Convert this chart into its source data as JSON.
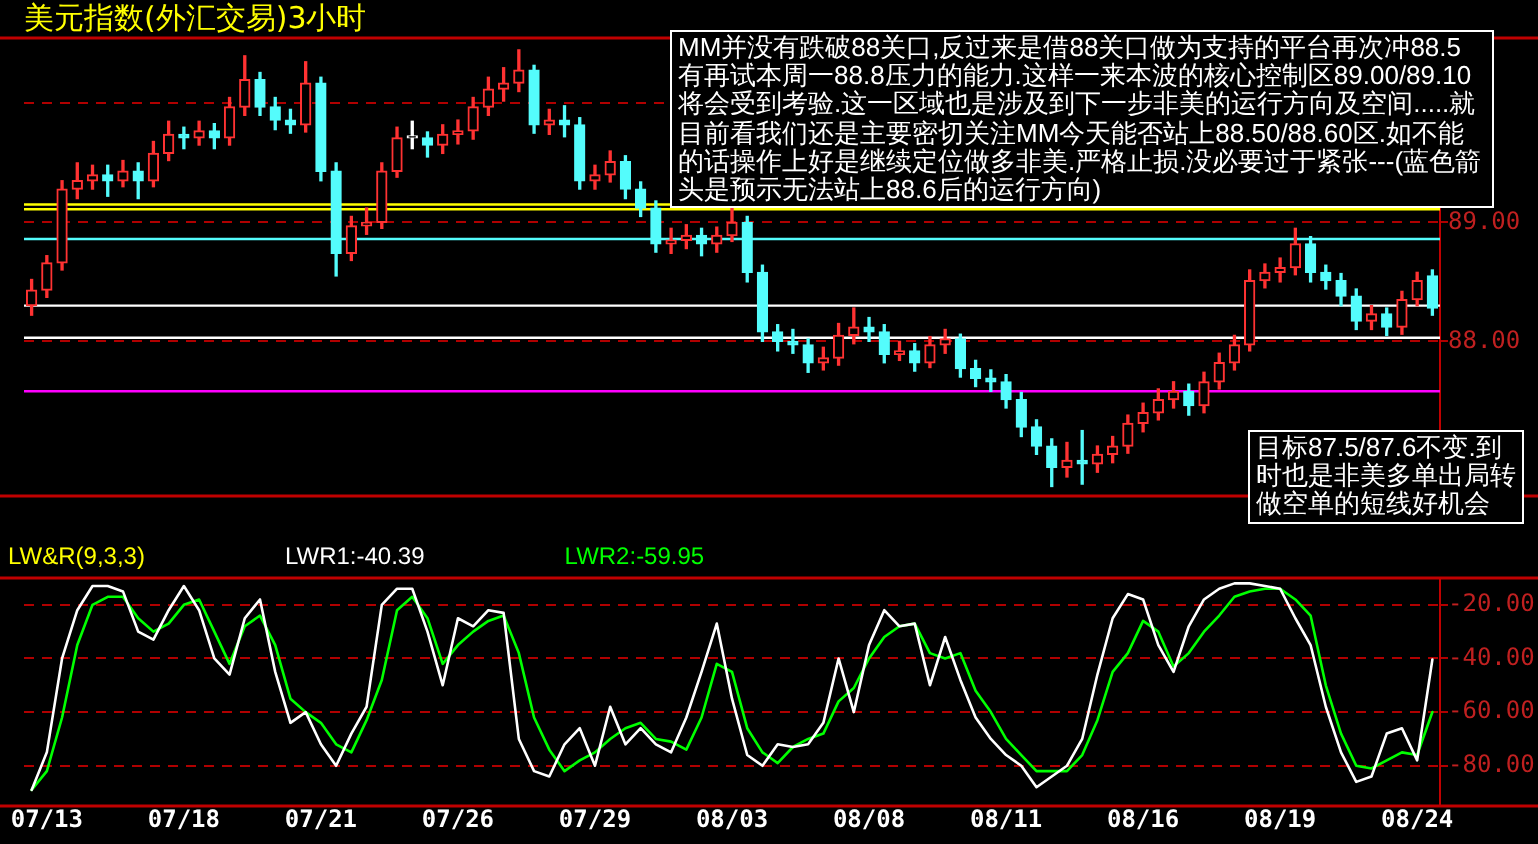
{
  "chart_data": [
    {
      "type": "candlestick",
      "title": "美元指数(外汇交易)3小时",
      "categories": [
        null,
        null,
        null,
        null,
        null,
        null,
        null,
        null,
        null,
        null,
        null,
        null,
        null,
        null,
        null,
        null,
        null,
        null,
        null,
        null,
        null,
        null,
        null,
        null,
        null,
        null,
        null,
        null,
        null,
        null,
        null,
        null,
        null,
        null,
        null,
        null,
        null,
        null,
        null,
        null,
        null,
        null,
        null,
        null,
        null,
        null,
        null,
        null,
        null,
        null,
        null,
        null,
        null,
        null,
        null,
        null,
        null,
        null,
        null,
        null,
        null,
        null,
        null,
        null,
        null,
        null,
        null,
        null,
        null,
        null,
        null,
        null,
        null,
        null,
        null,
        null,
        null,
        null,
        null,
        null,
        null,
        null,
        null,
        null,
        null,
        null,
        null,
        null,
        null,
        null,
        null,
        null,
        null
      ],
      "ohlc": [
        [
          88.3,
          88.52,
          88.22,
          88.43
        ],
        [
          88.43,
          88.72,
          88.37,
          88.66
        ],
        [
          88.66,
          89.35,
          88.6,
          89.28
        ],
        [
          89.28,
          89.5,
          89.2,
          89.35
        ],
        [
          89.35,
          89.48,
          89.28,
          89.4
        ],
        [
          89.4,
          89.48,
          89.22,
          89.35
        ],
        [
          89.35,
          89.52,
          89.3,
          89.43
        ],
        [
          89.43,
          89.5,
          89.2,
          89.35
        ],
        [
          89.35,
          89.68,
          89.3,
          89.58
        ],
        [
          89.58,
          89.85,
          89.52,
          89.74
        ],
        [
          89.74,
          89.8,
          89.62,
          89.71
        ],
        [
          89.71,
          89.85,
          89.65,
          89.77
        ],
        [
          89.77,
          89.83,
          89.62,
          89.71
        ],
        [
          89.71,
          90.05,
          89.65,
          89.97
        ],
        [
          89.97,
          90.4,
          89.9,
          90.2
        ],
        [
          90.2,
          90.26,
          89.9,
          89.97
        ],
        [
          89.97,
          90.05,
          89.78,
          89.86
        ],
        [
          89.86,
          89.95,
          89.75,
          89.82
        ],
        [
          89.82,
          90.35,
          89.76,
          90.17
        ],
        [
          90.17,
          90.22,
          89.35,
          89.43
        ],
        [
          89.43,
          89.5,
          88.55,
          88.74
        ],
        [
          88.74,
          89.05,
          88.68,
          88.97
        ],
        [
          88.97,
          89.12,
          88.9,
          89.0
        ],
        [
          89.0,
          89.5,
          88.95,
          89.43
        ],
        [
          89.43,
          89.8,
          89.38,
          89.71
        ],
        [
          89.71,
          89.85,
          89.62,
          89.71
        ],
        [
          89.71,
          89.76,
          89.55,
          89.65
        ],
        [
          89.65,
          89.82,
          89.58,
          89.74
        ],
        [
          89.74,
          89.86,
          89.66,
          89.77
        ],
        [
          89.77,
          90.05,
          89.7,
          89.97
        ],
        [
          89.97,
          90.22,
          89.9,
          90.12
        ],
        [
          90.12,
          90.3,
          90.02,
          90.17
        ],
        [
          90.17,
          90.45,
          90.1,
          90.28
        ],
        [
          90.28,
          90.32,
          89.75,
          89.82
        ],
        [
          89.82,
          89.95,
          89.74,
          89.86
        ],
        [
          89.86,
          89.98,
          89.72,
          89.82
        ],
        [
          89.82,
          89.88,
          89.28,
          89.35
        ],
        [
          89.35,
          89.48,
          89.28,
          89.4
        ],
        [
          89.4,
          89.6,
          89.34,
          89.51
        ],
        [
          89.51,
          89.56,
          89.2,
          89.28
        ],
        [
          89.28,
          89.34,
          89.05,
          89.12
        ],
        [
          89.12,
          89.18,
          88.75,
          88.82
        ],
        [
          88.82,
          88.95,
          88.74,
          88.85
        ],
        [
          88.85,
          88.98,
          88.78,
          88.89
        ],
        [
          88.89,
          88.95,
          88.72,
          88.82
        ],
        [
          88.82,
          88.96,
          88.75,
          88.89
        ],
        [
          88.89,
          89.12,
          88.84,
          89.0
        ],
        [
          89.0,
          89.05,
          88.5,
          88.58
        ],
        [
          88.58,
          88.64,
          88.0,
          88.08
        ],
        [
          88.08,
          88.14,
          87.92,
          88.0
        ],
        [
          88.0,
          88.1,
          87.9,
          87.97
        ],
        [
          87.97,
          88.02,
          87.74,
          87.82
        ],
        [
          87.82,
          87.95,
          87.76,
          87.86
        ],
        [
          87.86,
          88.15,
          87.8,
          88.05
        ],
        [
          88.05,
          88.28,
          87.98,
          88.12
        ],
        [
          88.12,
          88.2,
          88.0,
          88.08
        ],
        [
          88.08,
          88.14,
          87.82,
          87.89
        ],
        [
          87.89,
          88.0,
          87.84,
          87.92
        ],
        [
          87.92,
          87.98,
          87.75,
          87.82
        ],
        [
          87.82,
          88.04,
          87.78,
          87.97
        ],
        [
          87.97,
          88.1,
          87.9,
          88.02
        ],
        [
          88.02,
          88.06,
          87.7,
          87.77
        ],
        [
          87.77,
          87.84,
          87.62,
          87.69
        ],
        [
          87.69,
          87.76,
          87.58,
          87.66
        ],
        [
          87.66,
          87.72,
          87.44,
          87.51
        ],
        [
          87.51,
          87.57,
          87.2,
          87.28
        ],
        [
          87.28,
          87.34,
          87.05,
          87.12
        ],
        [
          87.12,
          87.18,
          86.78,
          86.94
        ],
        [
          86.94,
          87.15,
          86.86,
          87.0
        ],
        [
          87.0,
          87.25,
          86.8,
          86.97
        ],
        [
          86.97,
          87.12,
          86.9,
          87.05
        ],
        [
          87.05,
          87.2,
          86.98,
          87.12
        ],
        [
          87.12,
          87.38,
          87.06,
          87.31
        ],
        [
          87.31,
          87.48,
          87.24,
          87.4
        ],
        [
          87.4,
          87.6,
          87.34,
          87.51
        ],
        [
          87.51,
          87.66,
          87.44,
          87.58
        ],
        [
          87.58,
          87.64,
          87.38,
          87.46
        ],
        [
          87.46,
          87.74,
          87.4,
          87.66
        ],
        [
          87.66,
          87.9,
          87.6,
          87.82
        ],
        [
          87.82,
          88.05,
          87.76,
          87.97
        ],
        [
          87.97,
          88.6,
          87.92,
          88.51
        ],
        [
          88.51,
          88.65,
          88.45,
          88.58
        ],
        [
          88.58,
          88.7,
          88.5,
          88.62
        ],
        [
          88.62,
          88.95,
          88.56,
          88.82
        ],
        [
          88.82,
          88.88,
          88.5,
          88.58
        ],
        [
          88.58,
          88.64,
          88.44,
          88.51
        ],
        [
          88.51,
          88.57,
          88.3,
          88.38
        ],
        [
          88.38,
          88.44,
          88.1,
          88.17
        ],
        [
          88.17,
          88.3,
          88.1,
          88.23
        ],
        [
          88.23,
          88.28,
          88.05,
          88.12
        ],
        [
          88.12,
          88.42,
          88.06,
          88.35
        ],
        [
          88.35,
          88.58,
          88.3,
          88.51
        ],
        [
          88.55,
          88.6,
          88.22,
          88.28
        ]
      ],
      "colors": [
        "#ff3232",
        "#ff3232",
        "#ff3232",
        "#ff3232",
        "#ff3232",
        "#54fcfc",
        "#ff3232",
        "#54fcfc",
        "#ff3232",
        "#ff3232",
        "#54fcfc",
        "#ff3232",
        "#54fcfc",
        "#ff3232",
        "#ff3232",
        "#54fcfc",
        "#54fcfc",
        "#54fcfc",
        "#ff3232",
        "#54fcfc",
        "#54fcfc",
        "#ff3232",
        "#ff3232",
        "#ff3232",
        "#ff3232",
        "#ffffff",
        "#54fcfc",
        "#ff3232",
        "#ff3232",
        "#ff3232",
        "#ff3232",
        "#ff3232",
        "#ff3232",
        "#54fcfc",
        "#ff3232",
        "#54fcfc",
        "#54fcfc",
        "#ff3232",
        "#ff3232",
        "#54fcfc",
        "#54fcfc",
        "#54fcfc",
        "#ff3232",
        "#ff3232",
        "#54fcfc",
        "#ff3232",
        "#ff3232",
        "#54fcfc",
        "#54fcfc",
        "#54fcfc",
        "#54fcfc",
        "#54fcfc",
        "#ff3232",
        "#ff3232",
        "#ff3232",
        "#54fcfc",
        "#54fcfc",
        "#ff3232",
        "#54fcfc",
        "#ff3232",
        "#ff3232",
        "#54fcfc",
        "#54fcfc",
        "#54fcfc",
        "#54fcfc",
        "#54fcfc",
        "#54fcfc",
        "#54fcfc",
        "#ff3232",
        "#54fcfc",
        "#ff3232",
        "#ff3232",
        "#ff3232",
        "#ff3232",
        "#ff3232",
        "#ff3232",
        "#54fcfc",
        "#ff3232",
        "#ff3232",
        "#ff3232",
        "#ff3232",
        "#ff3232",
        "#ff3232",
        "#ff3232",
        "#54fcfc",
        "#54fcfc",
        "#54fcfc",
        "#54fcfc",
        "#ff3232",
        "#54fcfc",
        "#ff3232",
        "#ff3232",
        "#54fcfc"
      ],
      "ylim": [
        86.7,
        90.55
      ],
      "yticks": [
        {
          "value": 90,
          "label": null
        },
        {
          "value": 89,
          "label": "89.00"
        },
        {
          "value": 88,
          "label": "88.00"
        }
      ],
      "grid": "y",
      "tick_labels": "y",
      "ref_lines": [
        {
          "axis": "y",
          "value": 89.15,
          "color": "#ffff00"
        },
        {
          "axis": "y",
          "value": 89.11,
          "color": "#ffff00"
        },
        {
          "axis": "y",
          "value": 88.86,
          "color": "#54fcfc"
        },
        {
          "axis": "y",
          "value": 88.3,
          "color": "#ffffff"
        },
        {
          "axis": "y",
          "value": 88.03,
          "color": "#ffffff"
        },
        {
          "axis": "y",
          "value": 87.58,
          "color": "#ff00ff"
        }
      ],
      "annotations": [
        "MM并没有跌破88关口,反过来是借88关口做为支持的平台再次冲88.5有再试本周一88.8压力的能力.这样一来本波的核心控制区89.00/89.10将会受到考验.这一区域也是涉及到下一步非美的运行方向及空间.....就目前看我们还是主要密切关注MM今天能否站上88.50/88.60区.如不能的话操作上好是继续定位做多非美.严格止损.没必要过于紧张---(蓝色箭头是预示无法站上88.6后的运行方向)",
        "目标87.5/87.6不变.到时也是非美多单出局转做空单的短线好机会"
      ]
    },
    {
      "type": "line",
      "title": "LW&R(9,3,3)",
      "categories": [
        null,
        "07/13",
        null,
        null,
        null,
        null,
        null,
        null,
        null,
        null,
        "07/18",
        null,
        null,
        null,
        null,
        null,
        null,
        null,
        null,
        "07/21",
        null,
        null,
        null,
        null,
        null,
        null,
        null,
        null,
        "07/26",
        null,
        null,
        null,
        null,
        null,
        null,
        null,
        null,
        "07/29",
        null,
        null,
        null,
        null,
        null,
        null,
        null,
        null,
        "08/03",
        null,
        null,
        null,
        null,
        null,
        null,
        null,
        null,
        "08/08",
        null,
        null,
        null,
        null,
        null,
        null,
        null,
        null,
        "08/11",
        null,
        null,
        null,
        null,
        null,
        null,
        null,
        null,
        "08/16",
        null,
        null,
        null,
        null,
        null,
        null,
        null,
        null,
        "08/19",
        null,
        null,
        null,
        null,
        null,
        null,
        null,
        null,
        "08/24",
        null
      ],
      "series": [
        {
          "name": "LWR1:-40.39",
          "color": "#ffffff",
          "values": [
            -89,
            -75,
            -40,
            -22,
            -13,
            -13,
            -15,
            -30,
            -33,
            -22,
            -13,
            -22,
            -40,
            -46,
            -25,
            -18,
            -45,
            -64,
            -60,
            -72,
            -80,
            -68,
            -58,
            -20,
            -14,
            -14,
            -30,
            -50,
            -25,
            -28,
            -22,
            -23,
            -70,
            -82,
            -84,
            -72,
            -66,
            -80,
            -58,
            -72,
            -66,
            -72,
            -75,
            -62,
            -45,
            -27,
            -55,
            -76,
            -80,
            -72,
            -73,
            -72,
            -64,
            -40,
            -60,
            -35,
            -22,
            -28,
            -27,
            -50,
            -32,
            -48,
            -62,
            -70,
            -76,
            -80,
            -88,
            -84,
            -80,
            -70,
            -46,
            -25,
            -16,
            -18,
            -35,
            -45,
            -28,
            -18,
            -14,
            -12,
            -12,
            -13,
            -14,
            -25,
            -35,
            -58,
            -75,
            -86,
            -84,
            -68,
            -66,
            -78,
            -40.39
          ]
        },
        {
          "name": "LWR2:-59.95",
          "color": "#00ff00",
          "values": [
            -89,
            -82,
            -62,
            -35,
            -20,
            -17,
            -17,
            -25,
            -30,
            -27,
            -20,
            -18,
            -30,
            -42,
            -28,
            -24,
            -35,
            -55,
            -60,
            -64,
            -72,
            -75,
            -63,
            -48,
            -22,
            -17,
            -25,
            -42,
            -35,
            -30,
            -26,
            -24,
            -38,
            -62,
            -74,
            -82,
            -78,
            -75,
            -70,
            -66,
            -64,
            -70,
            -71,
            -74,
            -62,
            -42,
            -45,
            -66,
            -75,
            -79,
            -73,
            -70,
            -68,
            -56,
            -51,
            -40,
            -32,
            -28,
            -27,
            -38,
            -40,
            -38,
            -52,
            -60,
            -70,
            -76,
            -82,
            -82,
            -82,
            -76,
            -63,
            -45,
            -38,
            -26,
            -30,
            -43,
            -38,
            -30,
            -24,
            -17,
            -15,
            -14,
            -14,
            -18,
            -24,
            -50,
            -68,
            -80,
            -81,
            -78,
            -75,
            -76,
            -59.95
          ]
        }
      ],
      "ylim": [
        -95,
        -10
      ],
      "yticks": [
        {
          "value": -20,
          "label": "-20.00"
        },
        {
          "value": -40,
          "label": "-40.00"
        },
        {
          "value": -60,
          "label": "-60.00"
        },
        {
          "value": -80,
          "label": "-80.00"
        }
      ],
      "grid": "y",
      "marker": "none"
    }
  ]
}
